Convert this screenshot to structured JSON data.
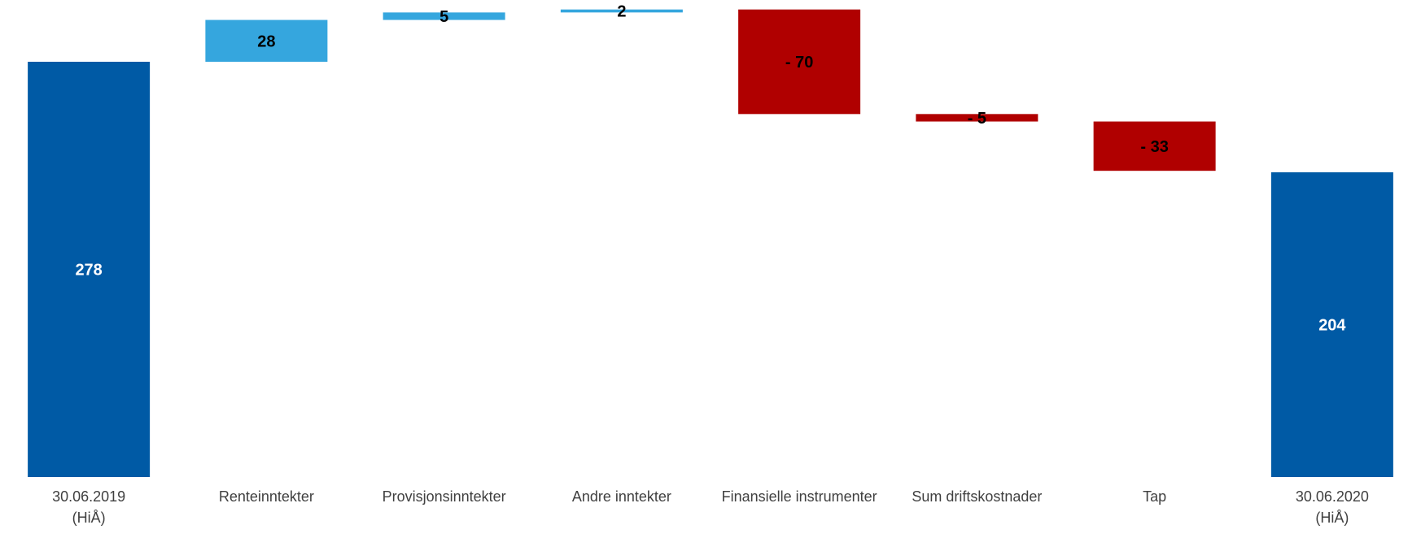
{
  "chart_data": {
    "type": "bar",
    "subtype": "waterfall",
    "title": "",
    "xlabel": "",
    "ylabel": "",
    "grid": false,
    "legend": "none",
    "categories": [
      [
        "30.06.2019",
        "(HiÅ)"
      ],
      [
        "Renteinntekter"
      ],
      [
        "Provisjonsinntekter"
      ],
      [
        "Andre inntekter"
      ],
      [
        "Finansielle instrumenter"
      ],
      [
        "Sum driftskostnader"
      ],
      [
        "Tap"
      ],
      [
        "30.06.2020",
        "(HiÅ)"
      ]
    ],
    "values": [
      278,
      28,
      5,
      2,
      -70,
      -5,
      -33,
      204
    ],
    "kinds": [
      "total",
      "increase",
      "increase",
      "increase",
      "decrease",
      "decrease",
      "decrease",
      "total"
    ],
    "data_labels": [
      "278",
      "28",
      "5",
      "2",
      "- 70",
      "- 5",
      "- 33",
      "204"
    ],
    "colors": {
      "total": "#005AA5",
      "increase": "#35A6DE",
      "decrease": "#B00000",
      "label_on_total": "#ffffff",
      "label_on_change": "#000000"
    }
  }
}
